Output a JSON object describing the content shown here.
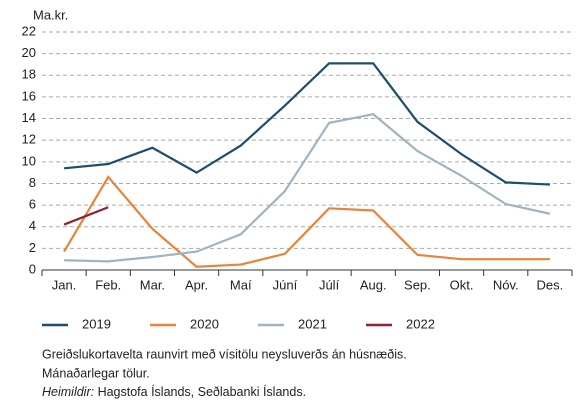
{
  "chart_data": {
    "type": "line",
    "y_unit": "Ma.kr.",
    "categories": [
      "Jan.",
      "Feb.",
      "Mar.",
      "Apr.",
      "Maí",
      "Júní",
      "Júlí",
      "Aug.",
      "Sep.",
      "Okt.",
      "Nóv.",
      "Des."
    ],
    "series": [
      {
        "name": "2019",
        "color": "#1b4f6b",
        "values": [
          9.4,
          9.8,
          11.3,
          9.0,
          11.5,
          15.2,
          19.1,
          19.1,
          13.7,
          10.7,
          8.1,
          7.9
        ]
      },
      {
        "name": "2020",
        "color": "#e8833a",
        "values": [
          1.7,
          8.6,
          3.8,
          0.3,
          0.5,
          1.5,
          5.7,
          5.5,
          1.4,
          1.0,
          1.0,
          1.0
        ]
      },
      {
        "name": "2021",
        "color": "#9fb4c2",
        "values": [
          0.9,
          0.8,
          1.2,
          1.7,
          3.3,
          7.3,
          13.6,
          14.4,
          11.0,
          8.7,
          6.1,
          5.2
        ]
      },
      {
        "name": "2022",
        "color": "#8b2332",
        "values": [
          4.2,
          5.8,
          null,
          null,
          null,
          null,
          null,
          null,
          null,
          null,
          null,
          null
        ]
      }
    ],
    "ylim": [
      0,
      22
    ],
    "yticks": [
      0,
      2,
      4,
      6,
      8,
      10,
      12,
      14,
      16,
      18,
      20,
      22
    ],
    "grid": true,
    "notes": [
      "Greiðslukortavelta raunvirt með vísitölu neysluverðs án húsnæðis.",
      "Mánaðarlegar tölur."
    ],
    "source_label": "Heimildir:",
    "source_text": "Hagstofa Íslands, Seðlabanki Íslands."
  }
}
